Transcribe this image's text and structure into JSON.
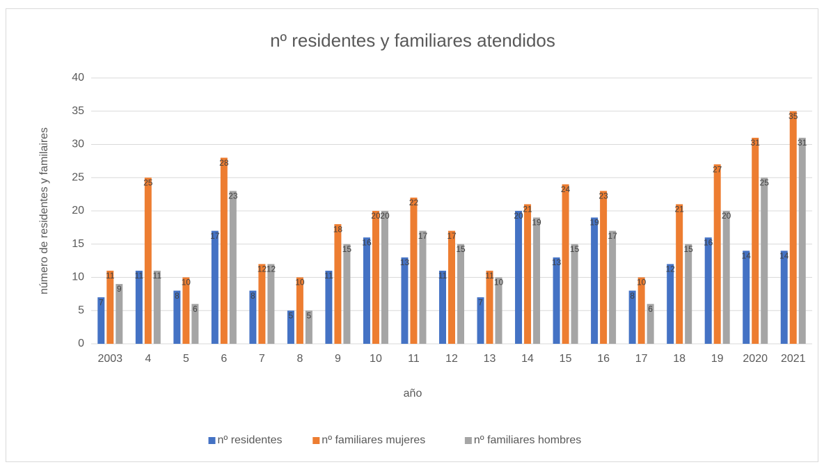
{
  "chart_data": {
    "type": "bar",
    "title": "nº residentes y familiares atendidos",
    "x_label": "año",
    "y_label": "número de residentes y familaires",
    "categories": [
      "2003",
      "4",
      "5",
      "6",
      "7",
      "8",
      "9",
      "10",
      "11",
      "12",
      "13",
      "14",
      "15",
      "16",
      "17",
      "18",
      "19",
      "2020",
      "2021"
    ],
    "series": [
      {
        "name": "nº residentes",
        "color": "#4472c4",
        "values": [
          7,
          11,
          8,
          17,
          8,
          5,
          11,
          16,
          13,
          11,
          7,
          20,
          13,
          19,
          8,
          12,
          16,
          14,
          14
        ]
      },
      {
        "name": "nº familiares mujeres",
        "color": "#ed7d31",
        "values": [
          11,
          25,
          10,
          28,
          12,
          10,
          18,
          20,
          22,
          17,
          11,
          21,
          24,
          23,
          10,
          21,
          27,
          31,
          35
        ]
      },
      {
        "name": "nº familiares hombres",
        "color": "#a5a5a5",
        "values": [
          9,
          11,
          6,
          23,
          12,
          5,
          15,
          20,
          17,
          15,
          10,
          19,
          15,
          17,
          6,
          15,
          20,
          25,
          31
        ]
      }
    ],
    "ylim": [
      0,
      40
    ],
    "yticks": [
      0,
      5,
      10,
      15,
      20,
      25,
      30,
      35,
      40
    ],
    "grid": true,
    "legend": "bottom"
  }
}
